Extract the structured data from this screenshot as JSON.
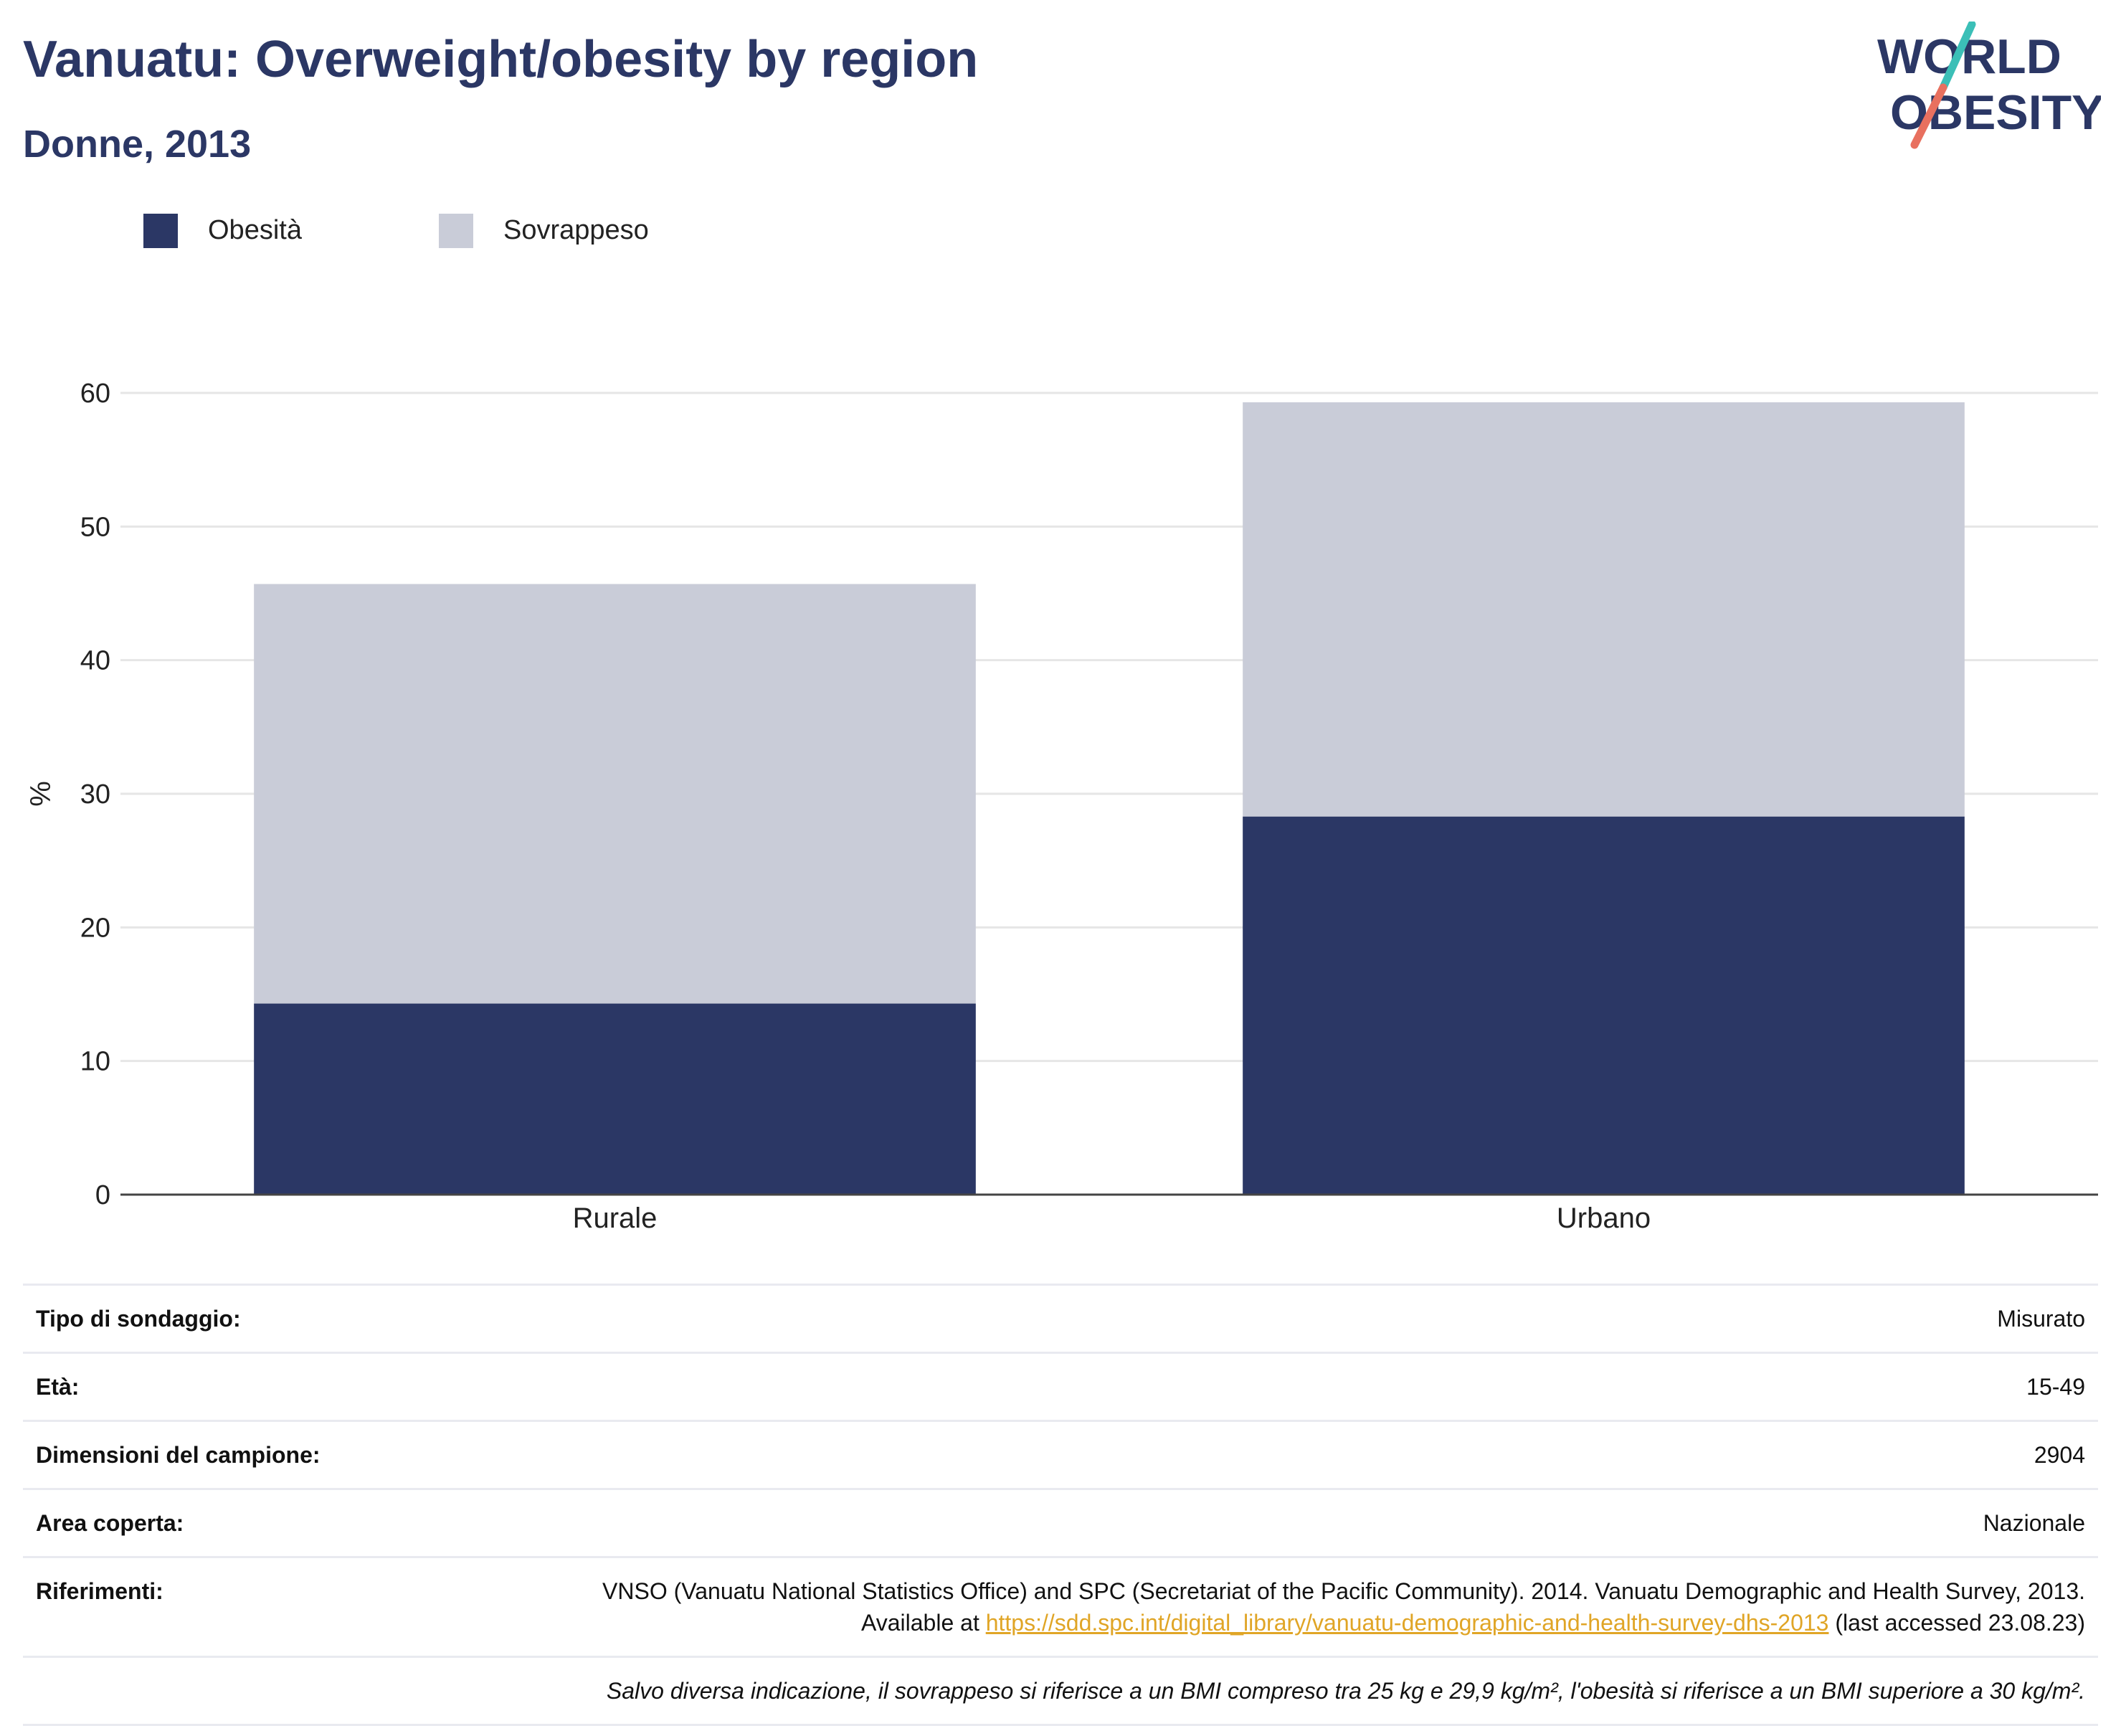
{
  "header": {
    "title": "Vanuatu: Overweight/obesity by region",
    "subtitle": "Donne, 2013"
  },
  "logo": {
    "line1": "WORLD",
    "line2": "OBESITY",
    "colors": {
      "text": "#2b3765",
      "slash_teal": "#3bbfb7",
      "slash_coral": "#e8705f"
    }
  },
  "colors": {
    "obesity": "#2b3765",
    "overweight": "#c9ccd8",
    "grid": "#e6e6e6",
    "axis": "#444444",
    "title": "#2b3765",
    "link": "#e0a526"
  },
  "chart_data": {
    "type": "bar",
    "stacked": true,
    "categories": [
      "Rurale",
      "Urbano"
    ],
    "series": [
      {
        "name": "Obesità",
        "values": [
          14.3,
          28.3
        ],
        "color": "#2b3765"
      },
      {
        "name": "Sovrappeso",
        "values": [
          31.4,
          31.0
        ],
        "color": "#c9ccd8"
      }
    ],
    "ylabel": "%",
    "xlabel": "",
    "ylim": [
      0,
      60
    ],
    "yticks": [
      0,
      10,
      20,
      30,
      40,
      50,
      60
    ],
    "grid": true,
    "legend_position": "top-left"
  },
  "info": {
    "rows": [
      {
        "key": "Tipo di sondaggio:",
        "value": "Misurato"
      },
      {
        "key": "Età:",
        "value": "15-49"
      },
      {
        "key": "Dimensioni del campione:",
        "value": "2904"
      },
      {
        "key": "Area coperta:",
        "value": "Nazionale"
      }
    ],
    "reference": {
      "key": "Riferimenti:",
      "text_before": "VNSO (Vanuatu National Statistics Office) and SPC (Secretariat of the Pacific Community). 2014. Vanuatu Demographic and Health Survey, 2013. Available at ",
      "link": "https://sdd.spc.int/digital_library/vanuatu-demographic-and-health-survey-dhs-2013",
      "text_after": " (last accessed 23.08.23)"
    },
    "note": "Salvo diversa indicazione, il sovrappeso si riferisce a un BMI compreso tra 25 kg e 29,9 kg/m², l'obesità si riferisce a un BMI superiore a 30 kg/m²."
  }
}
